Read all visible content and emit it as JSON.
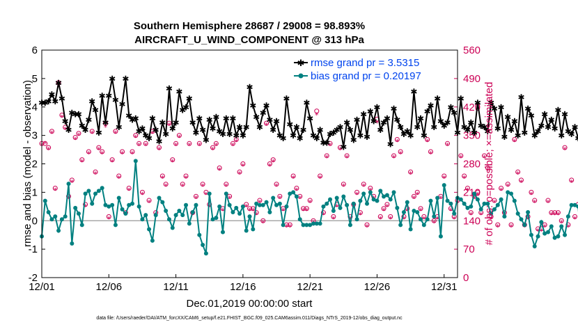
{
  "chart_data": {
    "type": "line",
    "title_line1": "Southern Hemisphere 28687 / 29008 = 98.893%",
    "title_line2": "AIRCRAFT_U_WIND_COMPONENT @ 313 hPa",
    "ylabel": "rmse and bias (model - observation)",
    "ylabel_right": "# of obs: o=possible; ×=assimilated",
    "xlabel": "Dec.01,2019 00:00:00 start",
    "footnote": "data file: /Users/raeder/DAI/ATM_forcXX/CAM6_setup/f.e21.FHIST_BGC.f09_025.CAM6assim.011/Diags_NTrS_2019-12/obs_diag_output.nc",
    "ylim": [
      -2,
      6
    ],
    "yticks": [
      "-2",
      "-1",
      "0",
      "1",
      "2",
      "3",
      "4",
      "5",
      "6"
    ],
    "ylim_right": [
      0,
      560
    ],
    "yticks_right": [
      "0",
      "70",
      "140",
      "210",
      "280",
      "350",
      "420",
      "490",
      "560"
    ],
    "xlim_days": [
      1,
      32
    ],
    "xticks": [
      {
        "day": 1,
        "label": "12/01"
      },
      {
        "day": 6,
        "label": "12/06"
      },
      {
        "day": 11,
        "label": "12/11"
      },
      {
        "day": 16,
        "label": "12/16"
      },
      {
        "day": 21,
        "label": "12/21"
      },
      {
        "day": 26,
        "label": "12/26"
      },
      {
        "day": 31,
        "label": "12/31"
      }
    ],
    "series": [
      {
        "name": "rmse",
        "legend": "rmse grand pr = 3.5315",
        "color": "#000000",
        "x_start_day": 1.0,
        "x_step_days": 0.25,
        "values": [
          4.15,
          4.15,
          4.2,
          4.45,
          4.2,
          4.85,
          4.3,
          3.5,
          3.2,
          3.8,
          3.75,
          3.75,
          3.35,
          3.2,
          3.55,
          4.2,
          3.9,
          3.1,
          4.4,
          3.45,
          4.4,
          5.0,
          4.25,
          3.3,
          4.1,
          5.0,
          3.7,
          3.55,
          3.6,
          3.15,
          3.25,
          3.0,
          2.9,
          3.6,
          3.2,
          2.8,
          3.45,
          3.05,
          4.65,
          3.25,
          3.45,
          4.55,
          3.9,
          4.0,
          4.3,
          3.45,
          3.1,
          3.6,
          3.2,
          2.85,
          3.55,
          3.25,
          3.65,
          3.15,
          3.05,
          3.6,
          3.05,
          3.6,
          3.0,
          3.3,
          3.0,
          3.3,
          4.7,
          4.05,
          3.65,
          3.3,
          3.8,
          4.05,
          3.55,
          3.2,
          3.5,
          3.0,
          2.9,
          4.3,
          3.4,
          3.0,
          3.3,
          2.9,
          3.2,
          4.15,
          3.6,
          3.0,
          2.9,
          3.2,
          2.75,
          2.75,
          3.05,
          3.1,
          3.2,
          3.3,
          2.6,
          3.45,
          3.2,
          2.85,
          3.55,
          3.0,
          3.75,
          2.95,
          3.85,
          3.5,
          4.0,
          3.2,
          3.45,
          3.6,
          2.7,
          3.95,
          3.55,
          3.3,
          3.05,
          3.15,
          3.0,
          4.55,
          3.3,
          3.6,
          3.0,
          3.85,
          4.05,
          3.3,
          4.3,
          3.5,
          3.35,
          3.45,
          4.0,
          3.8,
          3.1,
          4.3,
          3.3,
          3.2,
          3.45,
          3.1,
          4.15,
          3.35,
          3.3,
          3.15,
          4.15,
          3.95,
          3.25,
          4.0,
          2.95,
          3.65,
          3.2,
          3.5,
          3.0,
          4.35,
          3.1,
          3.95,
          3.7,
          3.0,
          3.15,
          3.35,
          3.75,
          3.3,
          3.55,
          3.25,
          3.9,
          3.0,
          3.75,
          3.15,
          3.05,
          3.3,
          2.9,
          3.25,
          3.55,
          3.5,
          3.1,
          3.95,
          3.15,
          4.1,
          3.2,
          3.75,
          3.05,
          2.95,
          3.8,
          4.2,
          2.65,
          3.25,
          3.75,
          3.1,
          3.2,
          3.4,
          3.55,
          3.85
        ]
      },
      {
        "name": "bias",
        "legend": "bias grand pr = 0.20197",
        "color": "#008080",
        "x_start_day": 1.0,
        "x_step_days": 0.25,
        "values": [
          -0.55,
          0.7,
          0.3,
          0.05,
          0.15,
          -0.35,
          0.05,
          0.15,
          1.3,
          -0.8,
          0.45,
          0.25,
          -0.15,
          0.95,
          1.05,
          0.6,
          0.95,
          1.05,
          1.15,
          0.55,
          0.5,
          0.55,
          -0.15,
          0.8,
          0.4,
          0.25,
          0.55,
          0.6,
          2.1,
          0.5,
          0.05,
          0.2,
          -0.3,
          -0.7,
          0.2,
          0.8,
          0.65,
          0.35,
          0.05,
          -0.25,
          0.2,
          0.35,
          0.2,
          0.55,
          -0.1,
          0.3,
          0.55,
          -0.5,
          -0.85,
          -1.15,
          0.95,
          0.05,
          0.1,
          0.5,
          -0.4,
          0.95,
          0.55,
          0.3,
          0.45,
          0.25,
          0.5,
          -0.35,
          0.15,
          -0.3,
          0.6,
          0.55,
          0.55,
          0.65,
          0.3,
          0.8,
          0.55,
          0.6,
          -0.15,
          0.5,
          0.95,
          1.0,
          0.85,
          0.05,
          -0.15,
          -0.15,
          -0.15,
          -0.1,
          -0.1,
          -0.1,
          0.5,
          0.6,
          0.75,
          0.35,
          0.8,
          0.45,
          0.85,
          0.55,
          -0.15,
          0.6,
          0.05,
          0.7,
          0.95,
          0.6,
          1.0,
          0.75,
          0.7,
          1.05,
          0.85,
          0.9,
          0.75,
          1.0,
          0.45,
          -0.15,
          0.3,
          0.65,
          -0.3,
          0.35,
          0.3,
          0.05,
          -0.15,
          0.05,
          0.7,
          0.15,
          0.8,
          -0.55,
          1.25,
          0.7,
          0.6,
          0.25,
          0.8,
          0.75,
          0.6,
          0.45,
          0.5,
          0.95,
          0.75,
          0.4,
          0.6,
          0.6,
          0.25,
          0.4,
          0.55,
          0.75,
          0.15,
          1.0,
          0.95,
          0.7,
          0.25,
          0.05,
          -0.15,
          0.3,
          -0.5,
          -0.9,
          -0.55,
          -0.05,
          -0.45,
          -0.4,
          -0.2,
          -0.6,
          -0.55,
          -0.2,
          -0.5,
          0.15,
          0.55,
          0.55,
          0.5,
          -0.9,
          0.1,
          -0.4,
          0.45,
          0.05,
          -0.15,
          -0.2,
          0.15,
          -0.25,
          -0.5,
          -0.65,
          0.25,
          -0.15,
          -0.55,
          -0.25,
          0.1,
          -0.25,
          -0.45,
          -0.6,
          -0.75,
          -0.95,
          0.15,
          0.7,
          0.7
        ]
      },
      {
        "name": "obs_possible",
        "marker": "o",
        "color": "#cc0055",
        "axis": "right",
        "x_start_day": 1.0,
        "x_step_days": 0.25,
        "values": [
          330,
          330,
          320,
          360,
          220,
          480,
          400,
          370,
          200,
          240,
          345,
          355,
          290,
          180,
          310,
          360,
          260,
          320,
          310,
          380,
          150,
          290,
          360,
          250,
          310,
          160,
          220,
          310,
          350,
          330,
          210,
          330,
          190,
          360,
          160,
          320,
          250,
          230,
          380,
          290,
          330,
          350,
          230,
          250,
          330,
          160,
          200,
          330,
          230,
          210,
          180,
          320,
          330,
          270,
          170,
          230,
          200,
          330,
          340,
          260,
          280,
          180,
          170,
          170,
          160,
          190,
          140,
          380,
          280,
          290,
          230,
          200,
          170,
          130,
          130,
          250,
          220,
          200,
          170,
          170,
          190,
          140,
          410,
          250,
          160,
          300,
          330,
          150,
          180,
          320,
          230,
          300,
          150,
          180,
          210,
          160,
          230,
          130,
          220,
          200,
          390,
          150,
          170,
          180,
          150,
          300,
          340,
          310,
          150,
          170,
          260,
          200,
          210,
          170,
          150,
          340,
          310,
          140,
          150,
          200,
          250,
          330,
          170,
          150,
          190,
          300,
          250,
          220,
          160,
          200,
          210,
          160,
          300,
          270,
          150,
          190,
          130,
          220,
          160,
          230,
          130,
          340,
          260,
          240,
          130,
          150,
          210,
          190,
          120,
          120,
          130,
          190,
          160,
          160,
          160,
          140,
          320,
          130,
          240,
          150,
          180,
          200,
          140,
          150,
          160,
          280,
          150,
          170,
          140,
          150,
          180,
          150,
          120,
          210,
          120,
          130,
          220,
          240,
          230,
          160,
          0,
          140
        ]
      },
      {
        "name": "obs_assimilated",
        "marker": "×",
        "color": "#cc0055",
        "axis": "right",
        "x_start_day": 1.0,
        "x_step_days": 0.25,
        "values": [
          325,
          330,
          315,
          355,
          215,
          470,
          395,
          365,
          195,
          235,
          340,
          350,
          285,
          175,
          305,
          355,
          255,
          315,
          305,
          370,
          145,
          285,
          355,
          245,
          305,
          155,
          215,
          305,
          345,
          325,
          205,
          325,
          185,
          355,
          155,
          315,
          245,
          225,
          375,
          285,
          325,
          345,
          225,
          245,
          325,
          155,
          195,
          325,
          225,
          205,
          175,
          315,
          325,
          265,
          165,
          225,
          195,
          325,
          335,
          255,
          275,
          175,
          165,
          165,
          155,
          185,
          135,
          375,
          275,
          285,
          225,
          195,
          165,
          125,
          125,
          245,
          215,
          195,
          165,
          165,
          185,
          135,
          400,
          245,
          155,
          295,
          325,
          145,
          175,
          315,
          225,
          295,
          145,
          175,
          205,
          155,
          225,
          125,
          215,
          195,
          380,
          145,
          165,
          175,
          145,
          295,
          335,
          305,
          145,
          165,
          255,
          195,
          205,
          165,
          145,
          335,
          305,
          135,
          145,
          195,
          245,
          325,
          165,
          145,
          185,
          295,
          245,
          215,
          155,
          195,
          205,
          155,
          295,
          265,
          145,
          185,
          125,
          215,
          155,
          225,
          125,
          335,
          255,
          235,
          125,
          145,
          205,
          185,
          115,
          115,
          125,
          185,
          155,
          155,
          155,
          135,
          315,
          125,
          235,
          145,
          175,
          195,
          135,
          145,
          155,
          275,
          145,
          165,
          135,
          145,
          175,
          145,
          115,
          205,
          115,
          125,
          215,
          235,
          225,
          155,
          0,
          135
        ]
      }
    ]
  }
}
